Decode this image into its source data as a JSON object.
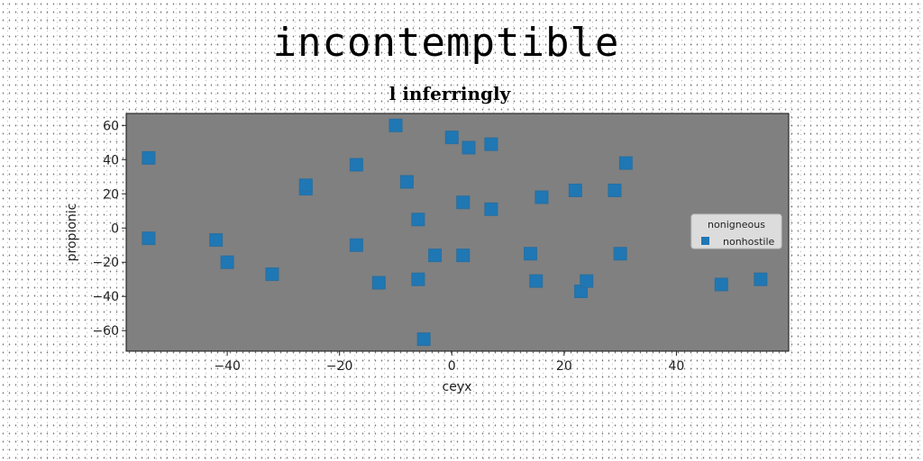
{
  "page_title": "incontemptible",
  "colors": {
    "plot_background": "#808080",
    "marker": "#1f77b4",
    "legend_background": "#e6e6e6"
  },
  "chart_data": {
    "type": "scatter",
    "title": "l inferringly",
    "xlabel": "ceyx",
    "ylabel": "propionic",
    "xlim": [
      -58,
      60
    ],
    "ylim": [
      -72,
      67
    ],
    "xticks": [
      -40,
      -20,
      0,
      20,
      40
    ],
    "yticks": [
      -60,
      -40,
      -20,
      0,
      20,
      40,
      60
    ],
    "xtick_labels": [
      "−40",
      "−20",
      "0",
      "20",
      "40"
    ],
    "ytick_labels": [
      "−60",
      "−40",
      "−20",
      "0",
      "20",
      "40",
      "60"
    ],
    "grid": false,
    "marker": "square",
    "legend": {
      "title": "nonigneous",
      "placement": "right",
      "entries": [
        "nonhostile"
      ]
    },
    "series": [
      {
        "name": "nonhostile",
        "points": [
          [
            -54,
            41
          ],
          [
            -54,
            -6
          ],
          [
            -42,
            -7
          ],
          [
            -40,
            -20
          ],
          [
            -32,
            -27
          ],
          [
            -26,
            23
          ],
          [
            -26,
            25
          ],
          [
            -17,
            37
          ],
          [
            -17,
            -10
          ],
          [
            -13,
            -32
          ],
          [
            -10,
            60
          ],
          [
            -8,
            27
          ],
          [
            -6,
            5
          ],
          [
            -6,
            -30
          ],
          [
            -5,
            -65
          ],
          [
            -3,
            -16
          ],
          [
            0,
            53
          ],
          [
            2,
            -16
          ],
          [
            2,
            15
          ],
          [
            3,
            47
          ],
          [
            7,
            11
          ],
          [
            7,
            49
          ],
          [
            14,
            -15
          ],
          [
            15,
            -31
          ],
          [
            16,
            18
          ],
          [
            22,
            22
          ],
          [
            23,
            -37
          ],
          [
            24,
            -31
          ],
          [
            29,
            22
          ],
          [
            30,
            -15
          ],
          [
            31,
            38
          ],
          [
            48,
            -33
          ],
          [
            55,
            -30
          ]
        ]
      }
    ]
  }
}
